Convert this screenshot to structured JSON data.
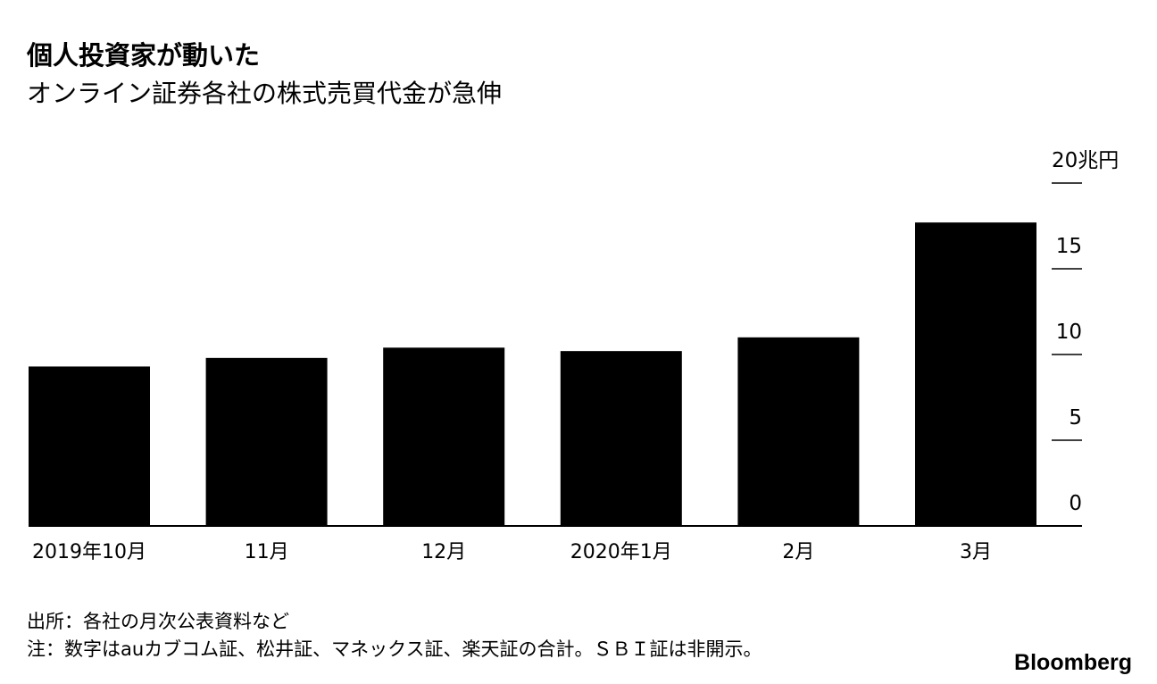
{
  "chart_data": {
    "type": "bar",
    "title": "個人投資家が動いた",
    "subtitle": "オンライン証券各社の株式売買代金が急伸",
    "categories": [
      "2019年10月",
      "11月",
      "12月",
      "2020年1月",
      "2月",
      "3月"
    ],
    "values": [
      9.3,
      9.8,
      10.4,
      10.2,
      11.0,
      17.7
    ],
    "color": "#000000",
    "ylim": [
      0,
      20
    ],
    "yticks": [
      0,
      5,
      10,
      15,
      {
        "value": 20,
        "label": "20兆円"
      }
    ],
    "source": "出所：各社の月次公表資料など",
    "note": "注：数字はauカブコム証、松井証、マネックス証、楽天証の合計。ＳＢＩ証は非開示。",
    "brand": "Bloomberg"
  }
}
